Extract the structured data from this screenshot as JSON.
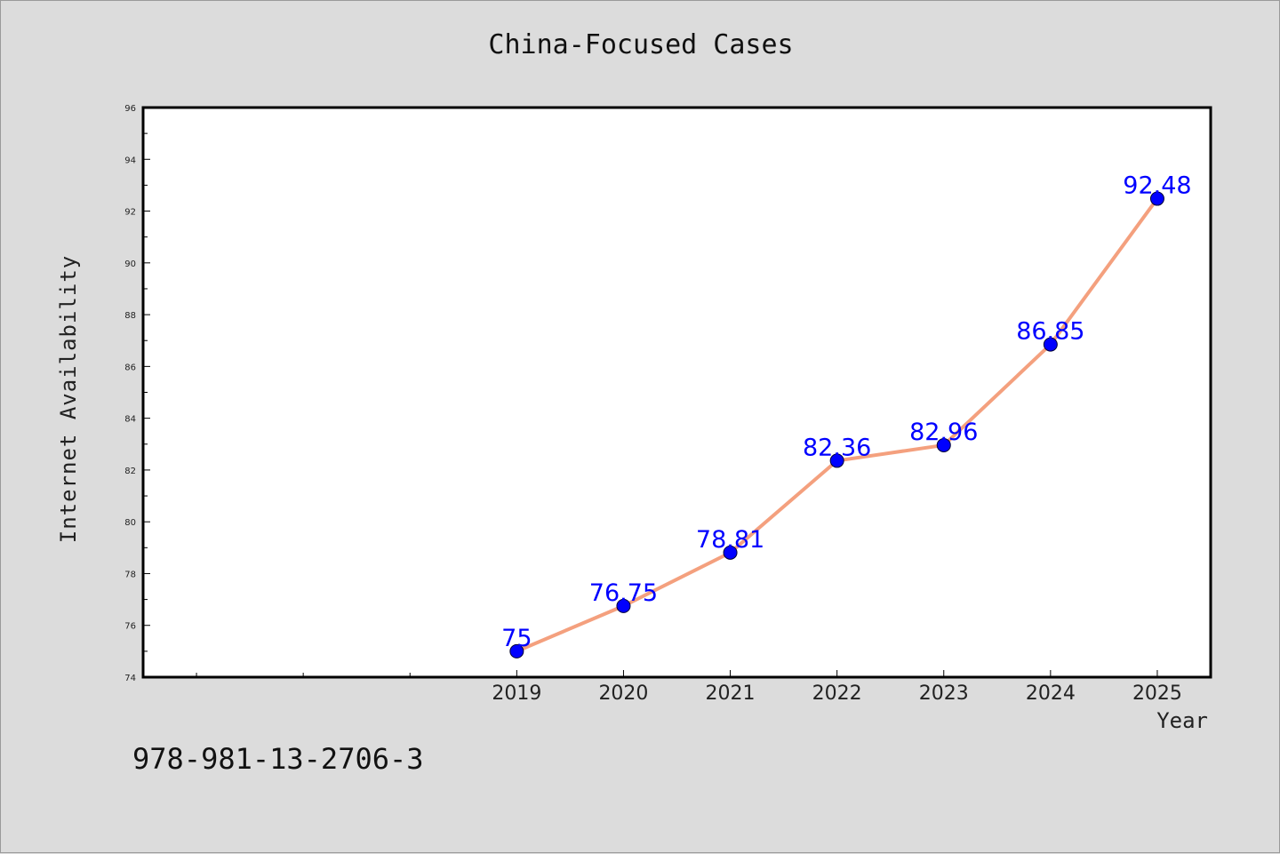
{
  "chart_data": {
    "type": "line",
    "title": "China-Focused Cases",
    "xlabel": "Year",
    "ylabel": "Internet Availability",
    "categories": [
      "2019",
      "2020",
      "2021",
      "2022",
      "2023",
      "2024",
      "2025"
    ],
    "x_range": [
      2015.5,
      2025.5
    ],
    "values": [
      75,
      76.75,
      78.81,
      82.36,
      82.96,
      86.85,
      92.48
    ],
    "data_labels": [
      "75",
      "76.75",
      "78.81",
      "82.36",
      "82.96",
      "86.85",
      "92.48"
    ],
    "ylim": [
      74,
      96
    ],
    "yticks": [
      74,
      76,
      78,
      80,
      82,
      84,
      86,
      88,
      90,
      92,
      94,
      96
    ],
    "grid": false,
    "legend": "none",
    "colors": {
      "line": "#f4a07e",
      "marker": "#0000ff",
      "label": "#0000ff",
      "background": "#dcdcdc",
      "plot_background": "#ffffff"
    }
  },
  "footer": {
    "code": "978-981-13-2706-3"
  }
}
